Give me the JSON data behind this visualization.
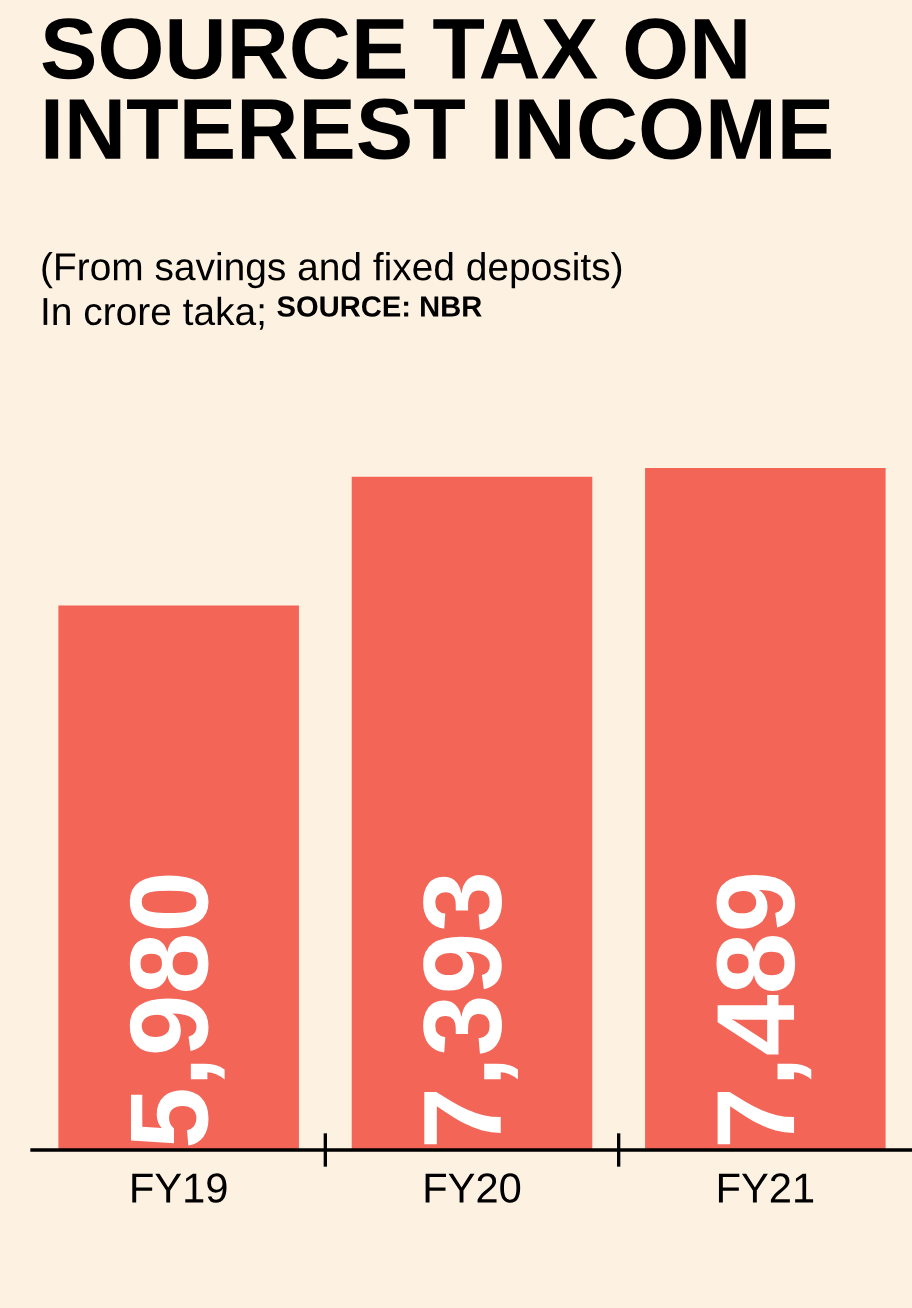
{
  "chart_data": {
    "type": "bar",
    "title": "SOURCE TAX ON\nINTEREST INCOME",
    "subtitle": "(From savings and fixed deposits)\nIn crore taka;",
    "annotations": [
      "SOURCE: NBR"
    ],
    "categories": [
      "FY19",
      "FY20",
      "FY21"
    ],
    "values": [
      5980,
      7393,
      7489
    ],
    "color": "#f26557",
    "value_labels": [
      "5,980",
      "7,393",
      "7,489"
    ],
    "ylim": [
      0,
      7489
    ],
    "grid": false,
    "legend": false
  }
}
